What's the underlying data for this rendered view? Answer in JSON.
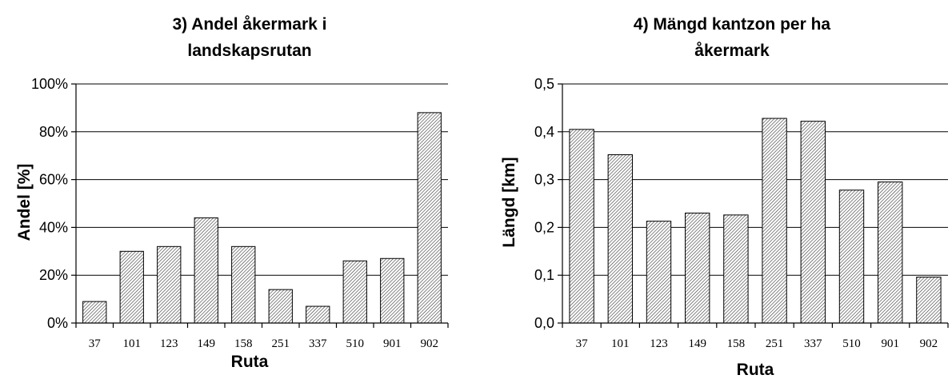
{
  "chart_data": [
    {
      "type": "bar",
      "title": [
        "3) Andel åkermark i",
        "landskapsrutan"
      ],
      "xlabel": "Ruta",
      "ylabel": "Andel [%]",
      "categories": [
        "37",
        "101",
        "123",
        "149",
        "158",
        "251",
        "337",
        "510",
        "901",
        "902"
      ],
      "values": [
        9,
        30,
        32,
        44,
        32,
        14,
        7,
        26,
        27,
        88
      ],
      "ylim": [
        0,
        100
      ],
      "yticks": [
        "0%",
        "20%",
        "40%",
        "60%",
        "80%",
        "100%"
      ],
      "grid": true,
      "bar_fill": "hatched"
    },
    {
      "type": "bar",
      "title": [
        "4) Mängd kantzon per ha",
        "åkermark"
      ],
      "xlabel": "Ruta",
      "ylabel": "Längd [km]",
      "categories": [
        "37",
        "101",
        "123",
        "149",
        "158",
        "251",
        "337",
        "510",
        "901",
        "902"
      ],
      "values": [
        0.405,
        0.352,
        0.213,
        0.23,
        0.226,
        0.428,
        0.422,
        0.278,
        0.295,
        0.096
      ],
      "ylim": [
        0,
        0.5
      ],
      "yticks": [
        "0,0",
        "0,1",
        "0,2",
        "0,3",
        "0,4",
        "0,5"
      ],
      "grid": true,
      "bar_fill": "hatched"
    }
  ]
}
